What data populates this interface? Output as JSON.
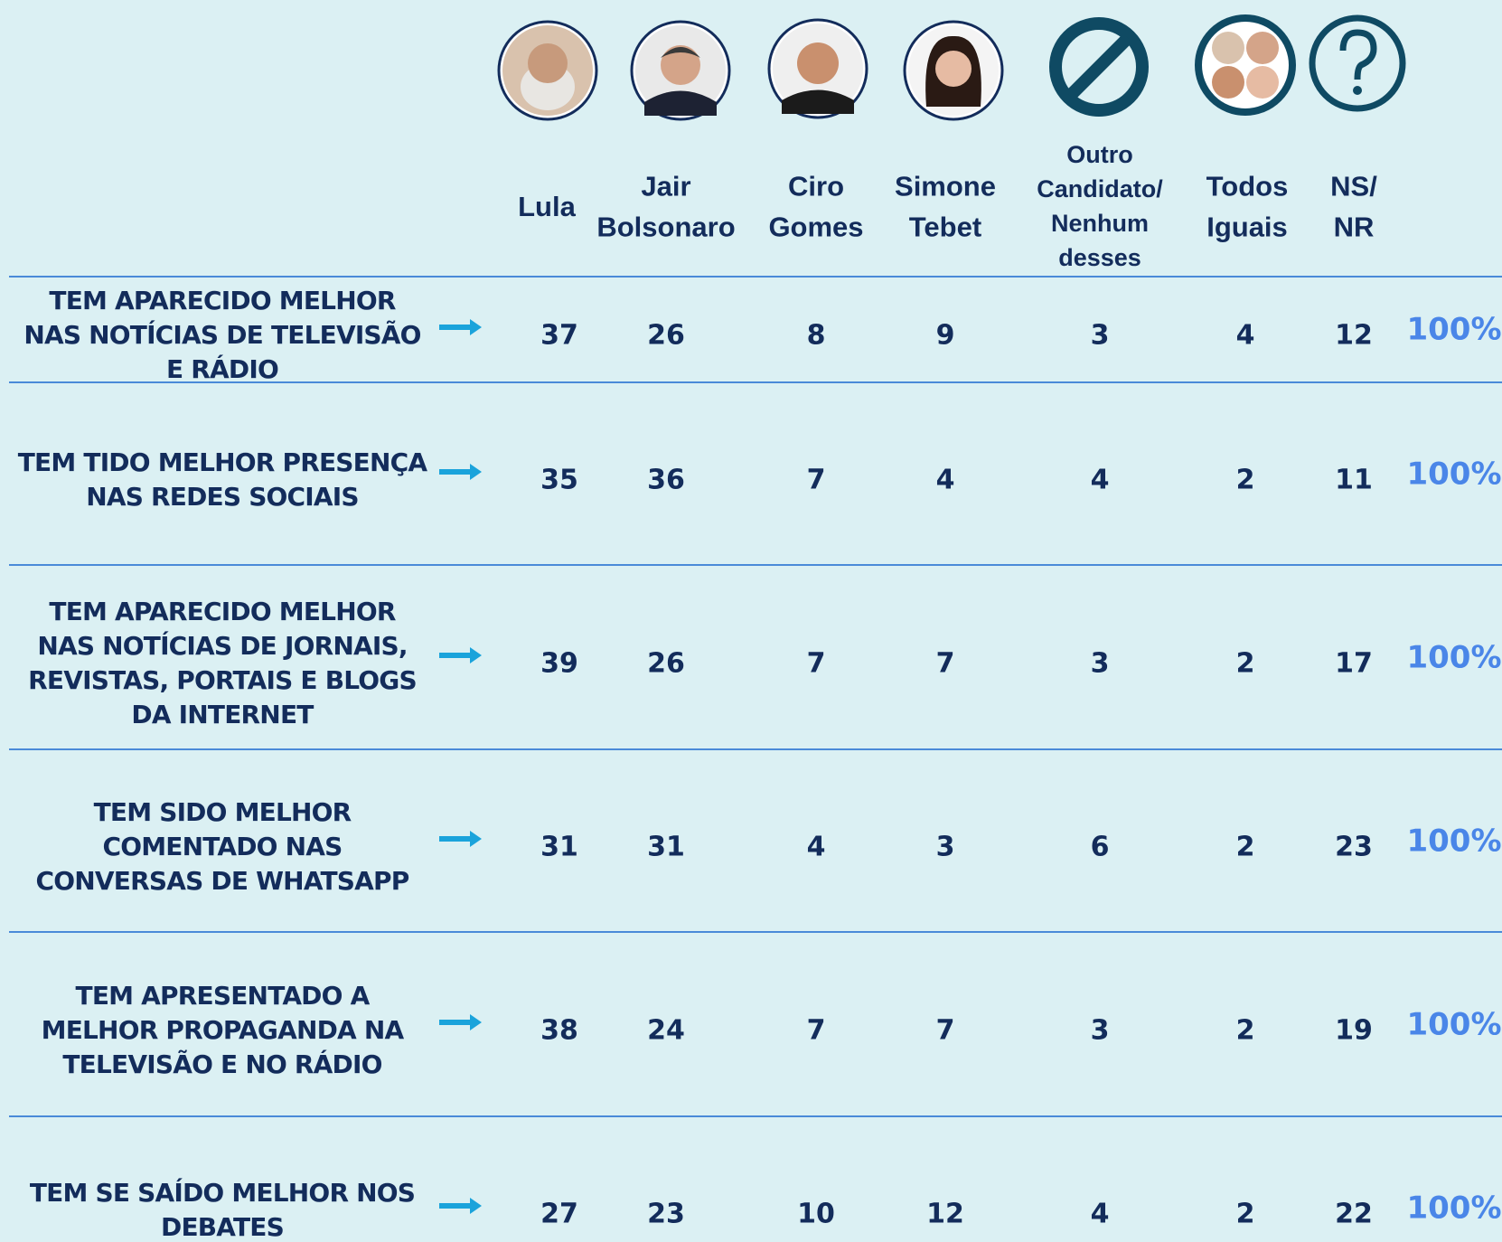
{
  "header": {
    "columns": [
      [
        "Lula"
      ],
      [
        "Jair",
        "Bolsonaro"
      ],
      [
        "Ciro",
        "Gomes"
      ],
      [
        "Simone",
        "Tebet"
      ],
      [
        "Outro",
        "Candidato/",
        "Nenhum",
        "desses"
      ],
      [
        "Todos",
        "Iguais"
      ],
      [
        "NS/",
        "NR"
      ]
    ]
  },
  "rows": [
    {
      "label": [
        "TEM APARECIDO MELHOR",
        "NAS NOTÍCIAS DE TELEVISÃO",
        "E RÁDIO"
      ],
      "values": [
        37,
        26,
        8,
        9,
        3,
        4,
        12
      ],
      "total": "100%"
    },
    {
      "label": [
        "TEM TIDO MELHOR PRESENÇA",
        "NAS REDES SOCIAIS"
      ],
      "values": [
        35,
        36,
        7,
        4,
        4,
        2,
        11
      ],
      "total": "100%"
    },
    {
      "label": [
        "TEM APARECIDO MELHOR",
        "NAS NOTÍCIAS DE JORNAIS,",
        "REVISTAS, PORTAIS E BLOGS",
        "DA INTERNET"
      ],
      "values": [
        39,
        26,
        7,
        7,
        3,
        2,
        17
      ],
      "total": "100%"
    },
    {
      "label": [
        "TEM SIDO MELHOR",
        "COMENTADO NAS",
        "CONVERSAS DE WHATSAPP"
      ],
      "values": [
        31,
        31,
        4,
        3,
        6,
        2,
        23
      ],
      "total": "100%"
    },
    {
      "label": [
        "TEM  APRESENTADO A",
        "MELHOR PROPAGANDA NA",
        "TELEVISÃO E NO RÁDIO"
      ],
      "values": [
        38,
        24,
        7,
        7,
        3,
        2,
        19
      ],
      "total": "100%"
    },
    {
      "label": [
        "TEM SE SAÍDO MELHOR NOS",
        "DEBATES"
      ],
      "values": [
        27,
        23,
        10,
        12,
        4,
        2,
        22
      ],
      "total": "100%"
    }
  ]
}
